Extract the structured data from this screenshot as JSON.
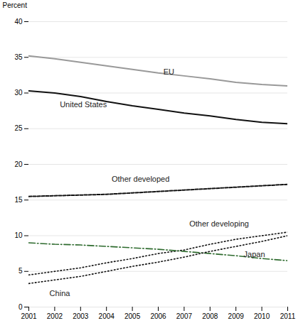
{
  "chart_data": {
    "type": "line",
    "x": [
      2001,
      2002,
      2003,
      2004,
      2005,
      2006,
      2007,
      2008,
      2009,
      2010,
      2011
    ],
    "xlim": [
      2001,
      2011
    ],
    "xticks": [
      2001,
      2002,
      2003,
      2004,
      2005,
      2006,
      2007,
      2008,
      2009,
      2010,
      2011
    ],
    "ylim": [
      0,
      40
    ],
    "yticks": [
      0,
      5,
      10,
      15,
      20,
      25,
      30,
      35,
      40
    ],
    "ylabel": "Percent",
    "grid": true,
    "series": [
      {
        "name": "EU",
        "color": "#999999",
        "line_style": "solid",
        "values": [
          35.2,
          34.8,
          34.3,
          33.8,
          33.3,
          32.8,
          32.4,
          32.0,
          31.5,
          31.2,
          31.0
        ]
      },
      {
        "name": "United States",
        "color": "#111111",
        "line_style": "solid",
        "values": [
          30.3,
          30.0,
          29.5,
          28.8,
          28.2,
          27.7,
          27.2,
          26.8,
          26.3,
          25.9,
          25.7
        ]
      },
      {
        "name": "Other developed",
        "color": "#111111",
        "line_style": "dashed",
        "values": [
          15.5,
          15.6,
          15.7,
          15.8,
          16.0,
          16.2,
          16.4,
          16.6,
          16.8,
          17.0,
          17.2
        ]
      },
      {
        "name": "Other developing",
        "color": "#111111",
        "line_style": "dotted",
        "values": [
          4.5,
          5.0,
          5.5,
          6.2,
          6.8,
          7.5,
          8.0,
          8.8,
          9.5,
          10.0,
          10.5
        ]
      },
      {
        "name": "Japan",
        "color": "#2d6a2d",
        "line_style": "dashdot",
        "values": [
          9.0,
          8.8,
          8.7,
          8.5,
          8.3,
          8.1,
          7.8,
          7.5,
          7.2,
          6.8,
          6.5
        ]
      },
      {
        "name": "China",
        "color": "#111111",
        "line_style": "dotted",
        "values": [
          3.3,
          3.8,
          4.3,
          5.0,
          5.7,
          6.3,
          7.0,
          7.8,
          8.5,
          9.2,
          10.0
        ]
      }
    ],
    "annotations": [
      {
        "text": "EU",
        "x": 2006.2,
        "y": 32.6
      },
      {
        "text": "United States",
        "x": 2002.2,
        "y": 28.0
      },
      {
        "text": "Other developed",
        "x": 2004.2,
        "y": 17.6
      },
      {
        "text": "Other developing",
        "x": 2007.2,
        "y": 11.3
      },
      {
        "text": "Japan",
        "x": 2009.3,
        "y": 7.0
      },
      {
        "text": "China",
        "x": 2001.8,
        "y": 1.5
      }
    ]
  }
}
